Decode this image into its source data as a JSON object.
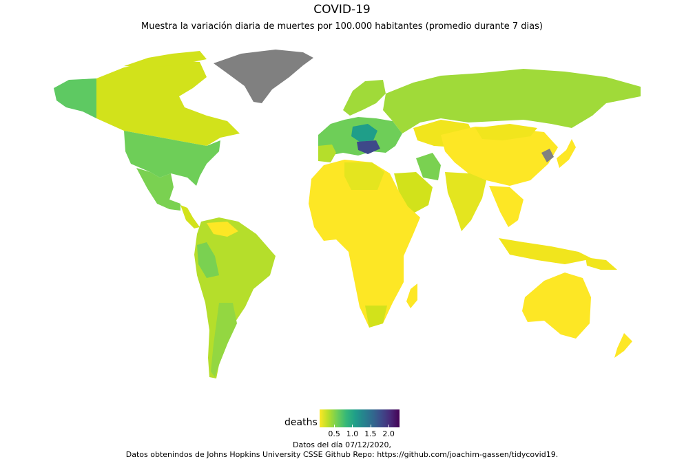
{
  "title": "COVID-19",
  "subtitle": "Muestra la variación diaria de muertes por 100.000 habitantes (promedio durante 7 dias)",
  "legend": {
    "title": "deaths",
    "ticks": [
      "0.5",
      "1.0",
      "1.5",
      "2.0"
    ],
    "range": [
      0.1,
      2.3
    ],
    "palette": "viridis (reversed)"
  },
  "caption": {
    "line1": "Datos del día 07/12/2020,",
    "line2": "Datos obtenindos de Johns Hopkins University CSSE Github Repo: https://github.com/joachim-gassen/tidycovid19."
  },
  "colors": {
    "no_data": "#808080",
    "low": "#fde725",
    "high": "#440154"
  }
}
